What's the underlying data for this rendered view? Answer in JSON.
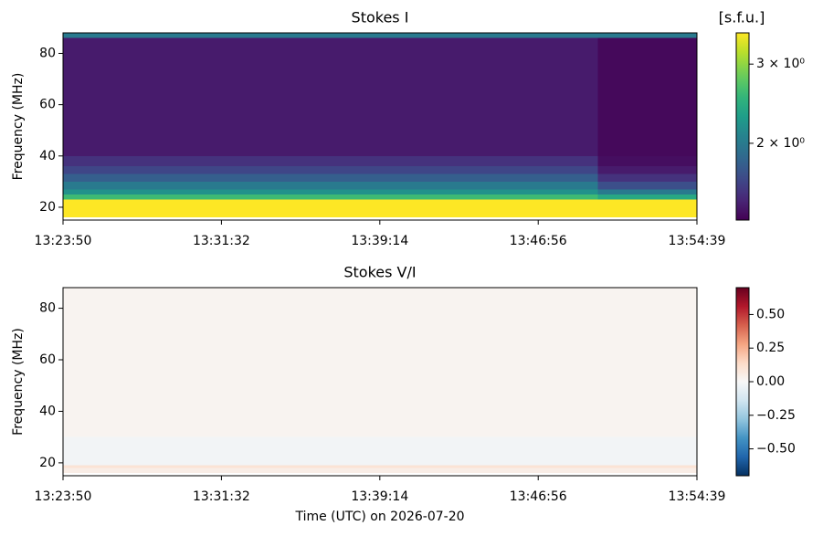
{
  "chart_data": [
    {
      "type": "heatmap",
      "title": "Stokes I",
      "ylabel": "Frequency (MHz)",
      "x": [
        "13:23:50",
        "13:49:50",
        "13:54:39"
      ],
      "y": [
        15,
        16,
        23,
        25,
        27,
        30,
        33,
        36,
        40,
        86,
        88
      ],
      "z": [
        [
          null,
          null
        ],
        [
          3.6,
          3.6
        ],
        [
          2.6,
          2.4
        ],
        [
          2.2,
          2.0
        ],
        [
          2.0,
          1.7
        ],
        [
          1.8,
          1.55
        ],
        [
          1.65,
          1.45
        ],
        [
          1.55,
          1.4
        ],
        [
          1.45,
          1.38
        ],
        [
          2.0,
          2.0
        ]
      ],
      "xlim": [
        "13:23:50",
        "13:54:39"
      ],
      "xticks": [
        "13:23:50",
        "13:31:32",
        "13:39:14",
        "13:46:56",
        "13:54:39"
      ],
      "ylim": [
        15,
        88
      ],
      "yticks": [
        20,
        40,
        60,
        80
      ],
      "colormap": "viridis",
      "cscale": "log",
      "clim": [
        1.35,
        3.52
      ],
      "clabel": "[s.f.u.]",
      "cticks": [
        {
          "value": 2,
          "label": "2 × 10⁰"
        },
        {
          "value": 3,
          "label": "3 × 10⁰"
        }
      ]
    },
    {
      "type": "heatmap",
      "title": "Stokes V/I",
      "ylabel": "Frequency (MHz)",
      "xlabel": "Time (UTC) on 2026-07-20",
      "x": [
        "13:23:50",
        "13:54:39"
      ],
      "y": [
        15,
        16,
        18,
        19,
        30,
        88
      ],
      "z": [
        [
          null
        ],
        [
          0.05
        ],
        [
          0.1
        ],
        [
          -0.02
        ],
        [
          0.02
        ]
      ],
      "xlim": [
        "13:23:50",
        "13:54:39"
      ],
      "xticks": [
        "13:23:50",
        "13:31:32",
        "13:39:14",
        "13:46:56",
        "13:54:39"
      ],
      "ylim": [
        15,
        88
      ],
      "yticks": [
        20,
        40,
        60,
        80
      ],
      "colormap": "RdBu_r",
      "cscale": "linear",
      "clim": [
        -0.7,
        0.7
      ],
      "cticks": [
        {
          "value": -0.5,
          "label": "−0.50"
        },
        {
          "value": -0.25,
          "label": "−0.25"
        },
        {
          "value": 0,
          "label": "0.00"
        },
        {
          "value": 0.25,
          "label": "0.25"
        },
        {
          "value": 0.5,
          "label": "0.50"
        }
      ]
    }
  ]
}
